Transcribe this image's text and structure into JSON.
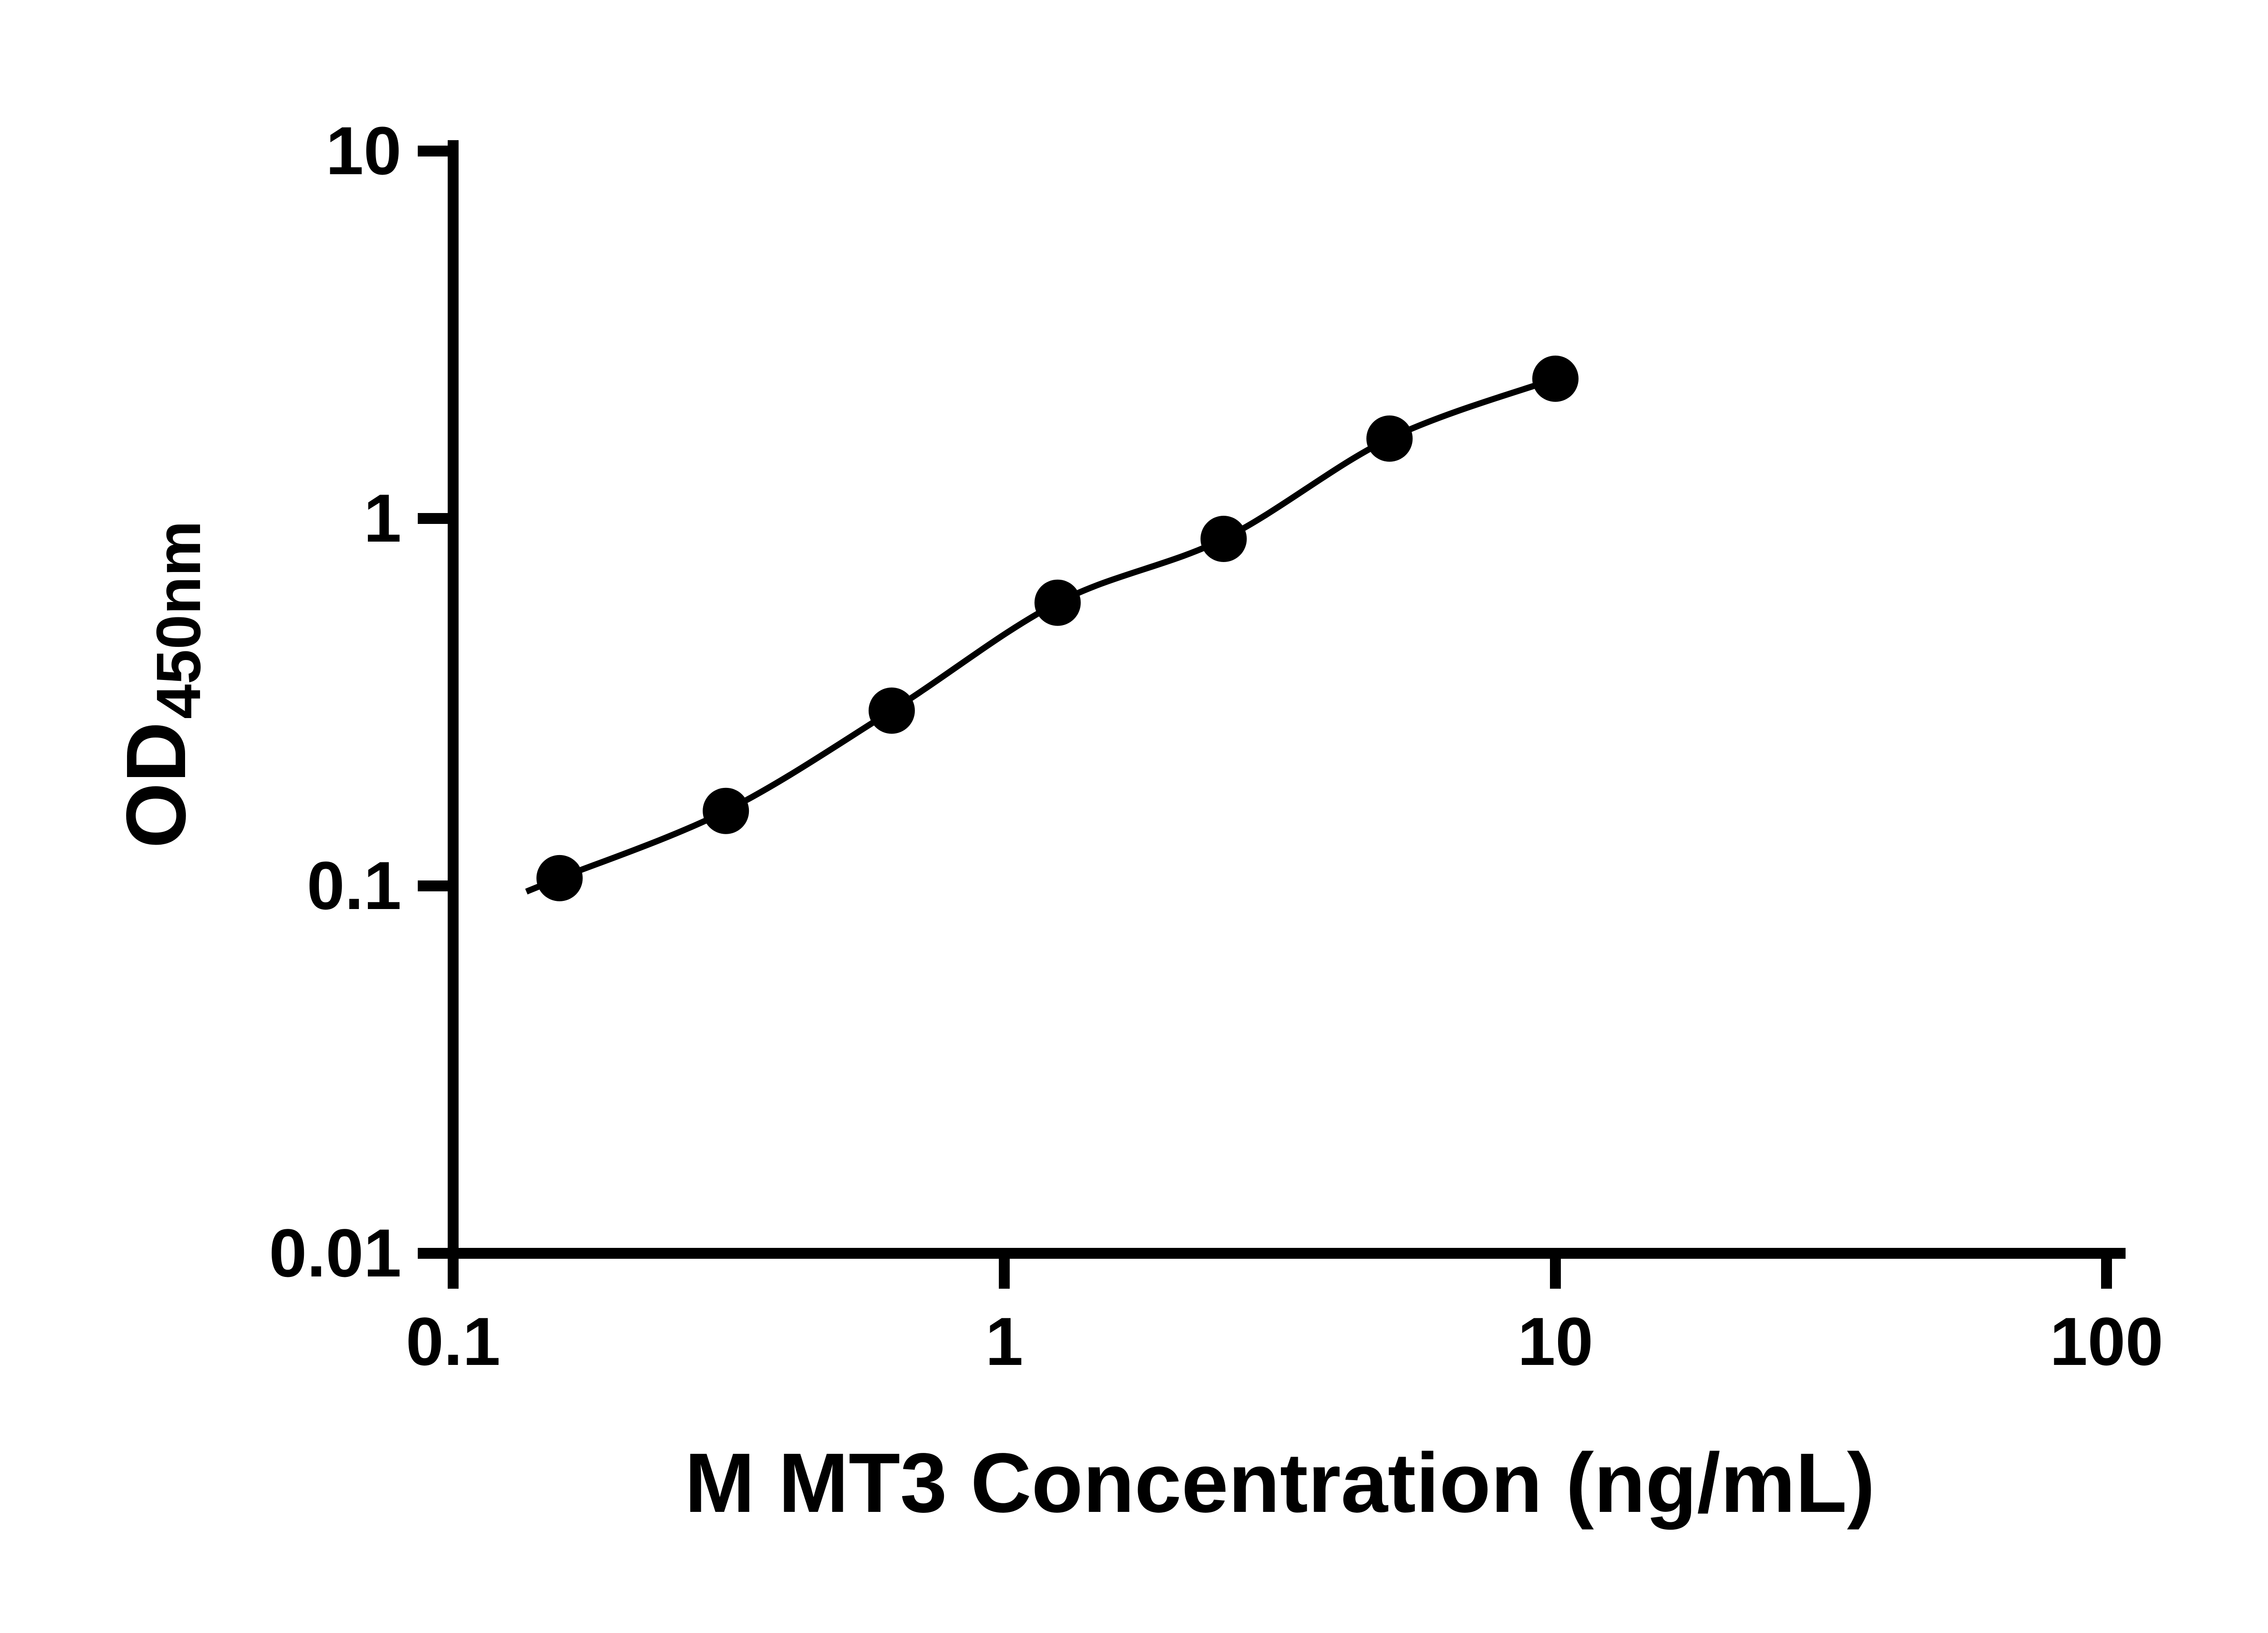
{
  "chart_data": {
    "type": "scatter",
    "fit_line": true,
    "title": "",
    "xlabel": "M MT3 Concentration (ng/mL)",
    "ylabel": "OD",
    "ylabel_sub": "450nm",
    "x_scale": "log10",
    "y_scale": "log10",
    "xlim": [
      0.1,
      100
    ],
    "ylim": [
      0.01,
      10
    ],
    "grid": false,
    "legend": "none",
    "x": [
      0.156,
      0.3125,
      0.625,
      1.25,
      2.5,
      5,
      10
    ],
    "y": [
      0.105,
      0.16,
      0.3,
      0.59,
      0.88,
      1.65,
      2.4
    ],
    "x_ticks": [
      {
        "value": 0.1,
        "label": "0.1"
      },
      {
        "value": 1,
        "label": "1"
      },
      {
        "value": 10,
        "label": "10"
      },
      {
        "value": 100,
        "label": "100"
      }
    ],
    "y_ticks": [
      {
        "value": 0.01,
        "label": "0.01"
      },
      {
        "value": 0.1,
        "label": "0.1"
      },
      {
        "value": 1,
        "label": "1"
      },
      {
        "value": 10,
        "label": "10"
      }
    ],
    "marker": "circle",
    "marker_color": "#000000",
    "line_color": "#000000",
    "axis_color": "#000000",
    "text_color": "#000000",
    "background": "#ffffff"
  }
}
